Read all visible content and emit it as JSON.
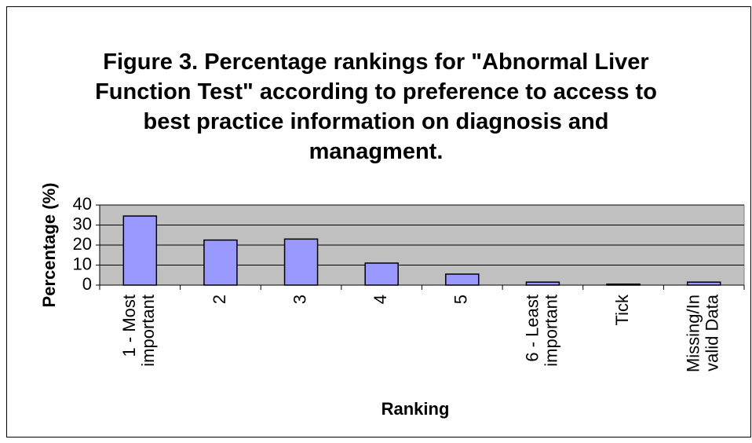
{
  "chart_data": {
    "type": "bar",
    "title": "Figure 3. Percentage rankings for \"Abnormal Liver Function Test\" according to preference to access to best practice information on diagnosis and managment.",
    "y_label": "Percentage (%)",
    "x_label": "Ranking",
    "categories": [
      "1 - Most important",
      "2",
      "3",
      "4",
      "5",
      "6 - Least important",
      "Tick",
      "Missing/Invalid Data"
    ],
    "values": [
      34.5,
      22.5,
      23,
      11,
      5.5,
      1.5,
      0.5,
      1.5
    ],
    "color": "#9999ff",
    "plot_background": "#c0c0c0",
    "ylim": [
      0,
      40
    ],
    "yticks": [
      0,
      10,
      20,
      30,
      40
    ],
    "grid": true
  }
}
